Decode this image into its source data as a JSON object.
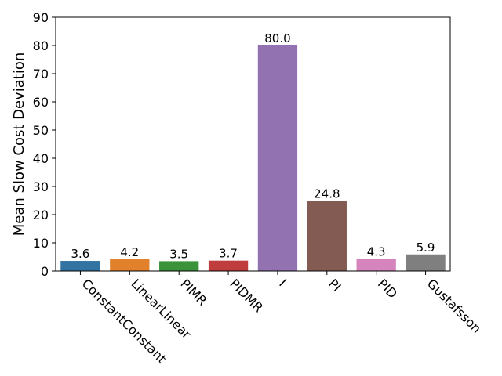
{
  "chart_data": {
    "type": "bar",
    "title": "",
    "xlabel": "",
    "ylabel": "Mean Slow Cost Deviation",
    "ylim": [
      0,
      90
    ],
    "yticks": [
      0,
      10,
      20,
      30,
      40,
      50,
      60,
      70,
      80,
      90
    ],
    "grid": false,
    "categories": [
      "ConstantConstant",
      "LinearLinear",
      "PIMR",
      "PIDMR",
      "I",
      "PI",
      "PID",
      "Gustafsson"
    ],
    "values": [
      3.6,
      4.2,
      3.5,
      3.7,
      80.0,
      24.8,
      4.3,
      5.9
    ],
    "value_labels": [
      "3.6",
      "4.2",
      "3.5",
      "3.7",
      "80.0",
      "24.8",
      "4.3",
      "5.9"
    ],
    "colors": [
      "#3274a1",
      "#e1812c",
      "#3a923a",
      "#c03d3e",
      "#9372b2",
      "#845b53",
      "#d684bd",
      "#7f7f7f"
    ]
  }
}
